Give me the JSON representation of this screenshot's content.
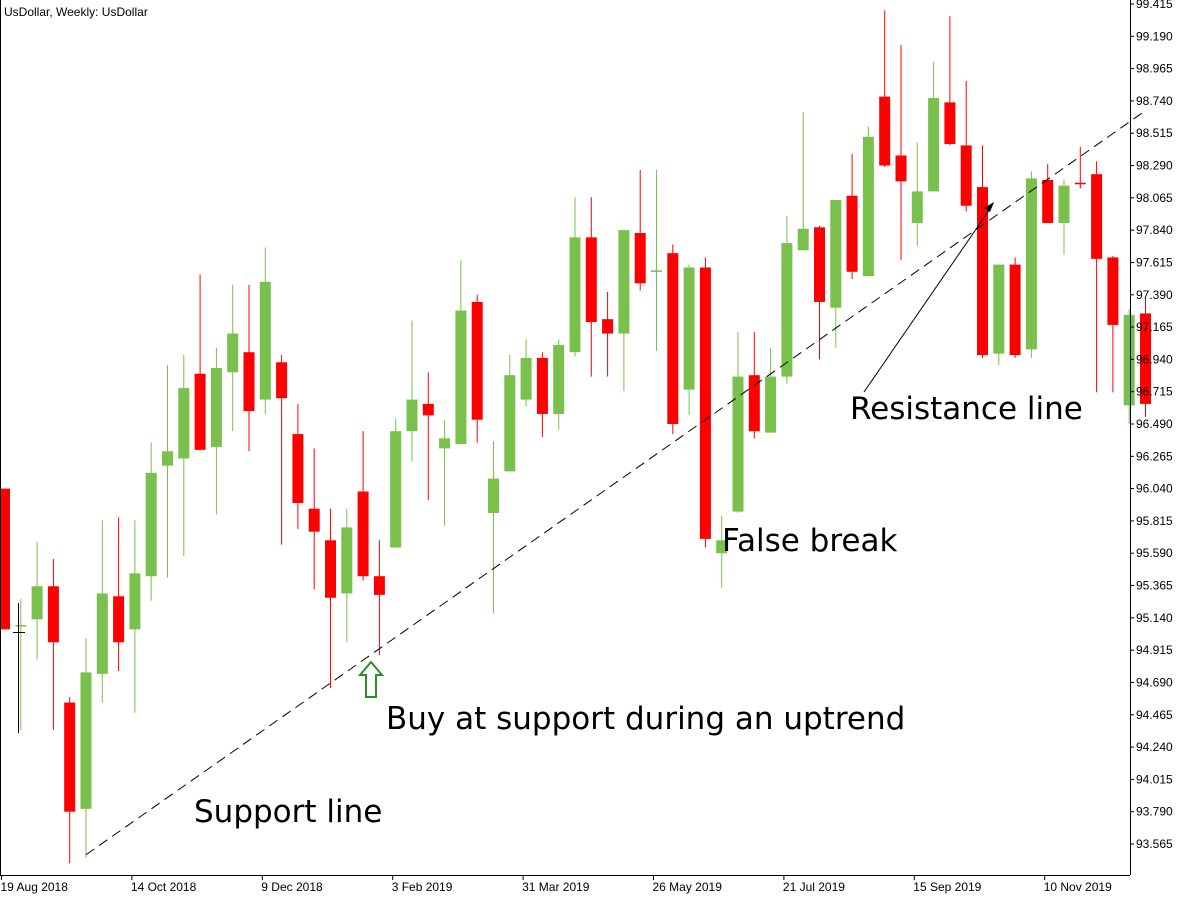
{
  "chart_data": {
    "type": "candlestick",
    "title": "UsDollar, Weekly:  UsDollar",
    "ylim": [
      93.41,
      99.415
    ],
    "y_ticks": [
      "99.415",
      "99.190",
      "98.965",
      "98.740",
      "98.515",
      "98.290",
      "98.065",
      "97.840",
      "97.615",
      "97.390",
      "97.165",
      "96.940",
      "96.715",
      "96.490",
      "96.265",
      "96.040",
      "95.815",
      "95.590",
      "95.365",
      "95.140",
      "94.915",
      "94.690",
      "94.465",
      "94.240",
      "94.015",
      "93.790",
      "93.565"
    ],
    "x_ticks": [
      {
        "label": "19 Aug 2018",
        "index": 0
      },
      {
        "label": "14 Oct 2018",
        "index": 8
      },
      {
        "label": "9 Dec 2018",
        "index": 16
      },
      {
        "label": "3 Feb 2019",
        "index": 24
      },
      {
        "label": "31 Mar 2019",
        "index": 32
      },
      {
        "label": "26 May 2019",
        "index": 40
      },
      {
        "label": "21 Jul 2019",
        "index": 48
      },
      {
        "label": "15 Sep 2019",
        "index": 56
      },
      {
        "label": "10 Nov 2019",
        "index": 64
      }
    ],
    "candles": [
      {
        "open": 96.04,
        "high": 96.04,
        "low": 95.06,
        "close": 95.06
      },
      {
        "open": 95.09,
        "high": 95.27,
        "low": 94.36,
        "close": 95.09
      },
      {
        "open": 95.13,
        "high": 95.67,
        "low": 94.85,
        "close": 95.36
      },
      {
        "open": 95.36,
        "high": 95.55,
        "low": 94.36,
        "close": 94.97
      },
      {
        "open": 94.55,
        "high": 94.59,
        "low": 93.43,
        "close": 93.79
      },
      {
        "open": 93.81,
        "high": 95.0,
        "low": 93.47,
        "close": 94.76
      },
      {
        "open": 94.75,
        "high": 95.82,
        "low": 94.55,
        "close": 95.31
      },
      {
        "open": 95.29,
        "high": 95.84,
        "low": 94.77,
        "close": 94.97
      },
      {
        "open": 95.06,
        "high": 95.82,
        "low": 94.48,
        "close": 95.45
      },
      {
        "open": 95.43,
        "high": 96.36,
        "low": 95.26,
        "close": 96.15
      },
      {
        "open": 96.2,
        "high": 96.9,
        "low": 95.42,
        "close": 96.3
      },
      {
        "open": 96.25,
        "high": 96.97,
        "low": 95.57,
        "close": 96.74
      },
      {
        "open": 96.84,
        "high": 97.53,
        "low": 96.31,
        "close": 96.31
      },
      {
        "open": 96.33,
        "high": 97.02,
        "low": 95.86,
        "close": 96.88
      },
      {
        "open": 96.85,
        "high": 97.46,
        "low": 96.44,
        "close": 97.12
      },
      {
        "open": 96.99,
        "high": 97.46,
        "low": 96.3,
        "close": 96.58
      },
      {
        "open": 96.66,
        "high": 97.72,
        "low": 96.56,
        "close": 97.48
      },
      {
        "open": 96.92,
        "high": 96.97,
        "low": 95.65,
        "close": 96.67
      },
      {
        "open": 96.42,
        "high": 96.63,
        "low": 95.76,
        "close": 95.94
      },
      {
        "open": 95.9,
        "high": 96.32,
        "low": 95.34,
        "close": 95.74
      },
      {
        "open": 95.68,
        "high": 95.9,
        "low": 94.65,
        "close": 95.28
      },
      {
        "open": 95.31,
        "high": 95.9,
        "low": 94.97,
        "close": 95.77
      },
      {
        "open": 96.02,
        "high": 96.44,
        "low": 95.4,
        "close": 95.43
      },
      {
        "open": 95.43,
        "high": 95.68,
        "low": 94.88,
        "close": 95.3
      },
      {
        "open": 95.63,
        "high": 96.53,
        "low": 95.63,
        "close": 96.44
      },
      {
        "open": 96.44,
        "high": 97.21,
        "low": 96.23,
        "close": 96.66
      },
      {
        "open": 96.63,
        "high": 96.85,
        "low": 95.96,
        "close": 96.55
      },
      {
        "open": 96.32,
        "high": 96.52,
        "low": 95.78,
        "close": 96.39
      },
      {
        "open": 96.35,
        "high": 97.63,
        "low": 96.35,
        "close": 97.28
      },
      {
        "open": 97.34,
        "high": 97.39,
        "low": 96.36,
        "close": 96.52
      },
      {
        "open": 95.87,
        "high": 96.37,
        "low": 95.17,
        "close": 96.11
      },
      {
        "open": 96.16,
        "high": 96.97,
        "low": 96.16,
        "close": 96.83
      },
      {
        "open": 96.66,
        "high": 97.08,
        "low": 96.61,
        "close": 96.95
      },
      {
        "open": 96.95,
        "high": 96.99,
        "low": 96.4,
        "close": 96.56
      },
      {
        "open": 96.56,
        "high": 97.08,
        "low": 96.45,
        "close": 97.04
      },
      {
        "open": 96.99,
        "high": 98.07,
        "low": 96.96,
        "close": 97.79
      },
      {
        "open": 97.79,
        "high": 98.07,
        "low": 96.82,
        "close": 97.2
      },
      {
        "open": 97.22,
        "high": 97.41,
        "low": 96.82,
        "close": 97.12
      },
      {
        "open": 97.12,
        "high": 97.84,
        "low": 96.72,
        "close": 97.84
      },
      {
        "open": 97.82,
        "high": 98.26,
        "low": 97.42,
        "close": 97.47
      },
      {
        "open": 97.56,
        "high": 98.26,
        "low": 97.0,
        "close": 97.56
      },
      {
        "open": 97.68,
        "high": 97.74,
        "low": 96.42,
        "close": 96.49
      },
      {
        "open": 96.73,
        "high": 97.6,
        "low": 96.55,
        "close": 97.58
      },
      {
        "open": 97.58,
        "high": 97.65,
        "low": 95.63,
        "close": 95.69
      },
      {
        "open": 95.59,
        "high": 95.85,
        "low": 95.35,
        "close": 95.68
      },
      {
        "open": 95.88,
        "high": 97.13,
        "low": 95.87,
        "close": 96.82
      },
      {
        "open": 96.83,
        "high": 97.13,
        "low": 96.39,
        "close": 96.44
      },
      {
        "open": 96.43,
        "high": 97.02,
        "low": 96.43,
        "close": 96.82
      },
      {
        "open": 96.82,
        "high": 97.94,
        "low": 96.77,
        "close": 97.75
      },
      {
        "open": 97.7,
        "high": 98.66,
        "low": 97.7,
        "close": 97.85
      },
      {
        "open": 97.86,
        "high": 97.87,
        "low": 96.94,
        "close": 97.34
      },
      {
        "open": 97.3,
        "high": 98.05,
        "low": 97.02,
        "close": 98.05
      },
      {
        "open": 98.08,
        "high": 98.37,
        "low": 97.5,
        "close": 97.55
      },
      {
        "open": 97.52,
        "high": 98.56,
        "low": 97.52,
        "close": 98.49
      },
      {
        "open": 98.77,
        "high": 99.37,
        "low": 98.28,
        "close": 98.29
      },
      {
        "open": 98.36,
        "high": 99.13,
        "low": 97.63,
        "close": 98.18
      },
      {
        "open": 97.89,
        "high": 98.45,
        "low": 97.73,
        "close": 98.11
      },
      {
        "open": 98.11,
        "high": 99.01,
        "low": 98.11,
        "close": 98.76
      },
      {
        "open": 98.73,
        "high": 99.33,
        "low": 98.43,
        "close": 98.44
      },
      {
        "open": 98.43,
        "high": 98.88,
        "low": 97.97,
        "close": 98.01
      },
      {
        "open": 98.14,
        "high": 98.43,
        "low": 96.95,
        "close": 96.97
      },
      {
        "open": 96.98,
        "high": 97.59,
        "low": 96.9,
        "close": 97.6
      },
      {
        "open": 97.6,
        "high": 97.65,
        "low": 96.95,
        "close": 96.97
      },
      {
        "open": 97.01,
        "high": 98.25,
        "low": 96.95,
        "close": 98.2
      },
      {
        "open": 98.19,
        "high": 98.3,
        "low": 97.9,
        "close": 97.89
      },
      {
        "open": 97.89,
        "high": 98.19,
        "low": 97.67,
        "close": 98.15
      },
      {
        "open": 98.17,
        "high": 98.42,
        "low": 98.13,
        "close": 98.16
      },
      {
        "open": 98.23,
        "high": 98.32,
        "low": 96.71,
        "close": 97.64
      },
      {
        "open": 97.65,
        "high": 97.66,
        "low": 96.71,
        "close": 97.18
      },
      {
        "open": 96.62,
        "high": 97.29,
        "low": 96.49,
        "close": 97.25
      },
      {
        "open": 97.26,
        "high": 97.36,
        "low": 96.54,
        "close": 96.63
      }
    ],
    "colors": {
      "up": "#7ac04c",
      "down": "#ff0000",
      "wick": "#7ac04c",
      "down_wick": "#ff0000"
    },
    "trendlines": [
      {
        "name": "support-line",
        "start": [
          5,
          93.49
        ],
        "end": [
          70,
          98.67
        ]
      }
    ],
    "annotations": {
      "support": "Support line",
      "buy": "Buy at support during an uptrend",
      "false_break": "False break",
      "resistance": "Resistance line"
    },
    "grid": false
  }
}
